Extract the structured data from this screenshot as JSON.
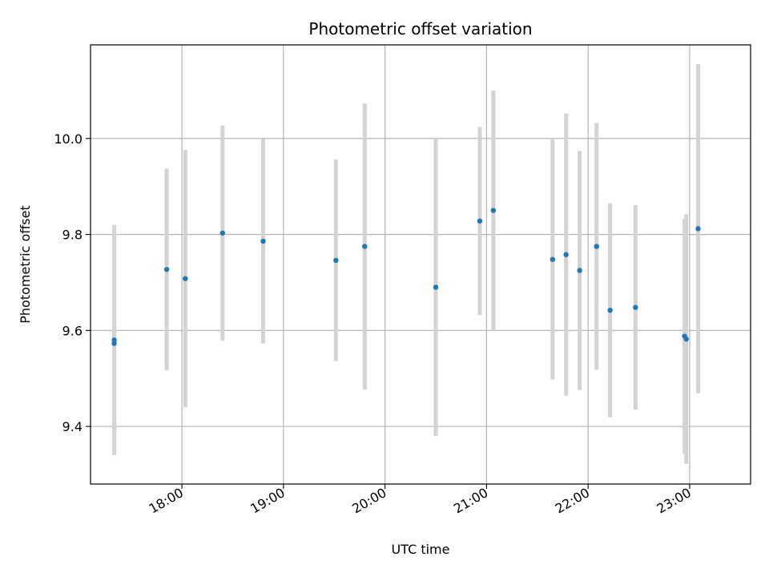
{
  "chart_data": {
    "type": "scatter",
    "title": "Photometric offset variation",
    "xlabel": "UTC time",
    "ylabel": "Photometric offset",
    "xlim": [
      "17:06",
      "23:36"
    ],
    "ylim": [
      9.28,
      10.195
    ],
    "x_ticks": [
      "18:00",
      "19:00",
      "20:00",
      "21:00",
      "22:00",
      "23:00"
    ],
    "y_ticks": [
      "9.4",
      "9.6",
      "9.8",
      "10.0"
    ],
    "grid": true,
    "colors": {
      "point": "#1f77b4",
      "errorbar": "#d3d3d3",
      "grid": "#b0b0b0"
    },
    "points": [
      {
        "x": "17:20",
        "y": 9.58,
        "yerr": 0.24
      },
      {
        "x": "17:20",
        "y": 9.573,
        "yerr": 0.23
      },
      {
        "x": "17:51",
        "y": 9.727,
        "yerr": 0.21
      },
      {
        "x": "18:02",
        "y": 9.708,
        "yerr": 0.268
      },
      {
        "x": "18:24",
        "y": 9.803,
        "yerr": 0.224
      },
      {
        "x": "18:48",
        "y": 9.786,
        "yerr": 0.213
      },
      {
        "x": "19:31",
        "y": 9.746,
        "yerr": 0.21
      },
      {
        "x": "19:48",
        "y": 9.775,
        "yerr": 0.298
      },
      {
        "x": "20:30",
        "y": 9.69,
        "yerr": 0.31
      },
      {
        "x": "20:56",
        "y": 9.828,
        "yerr": 0.196
      },
      {
        "x": "21:04",
        "y": 9.85,
        "yerr": 0.25
      },
      {
        "x": "21:39",
        "y": 9.748,
        "yerr": 0.25
      },
      {
        "x": "21:47",
        "y": 9.758,
        "yerr": 0.294
      },
      {
        "x": "21:55",
        "y": 9.725,
        "yerr": 0.249
      },
      {
        "x": "22:05",
        "y": 9.775,
        "yerr": 0.257
      },
      {
        "x": "22:13",
        "y": 9.642,
        "yerr": 0.223
      },
      {
        "x": "22:28",
        "y": 9.648,
        "yerr": 0.213
      },
      {
        "x": "22:57",
        "y": 9.588,
        "yerr": 0.245
      },
      {
        "x": "22:58",
        "y": 9.582,
        "yerr": 0.26
      },
      {
        "x": "23:05",
        "y": 9.812,
        "yerr": 0.343
      }
    ]
  }
}
